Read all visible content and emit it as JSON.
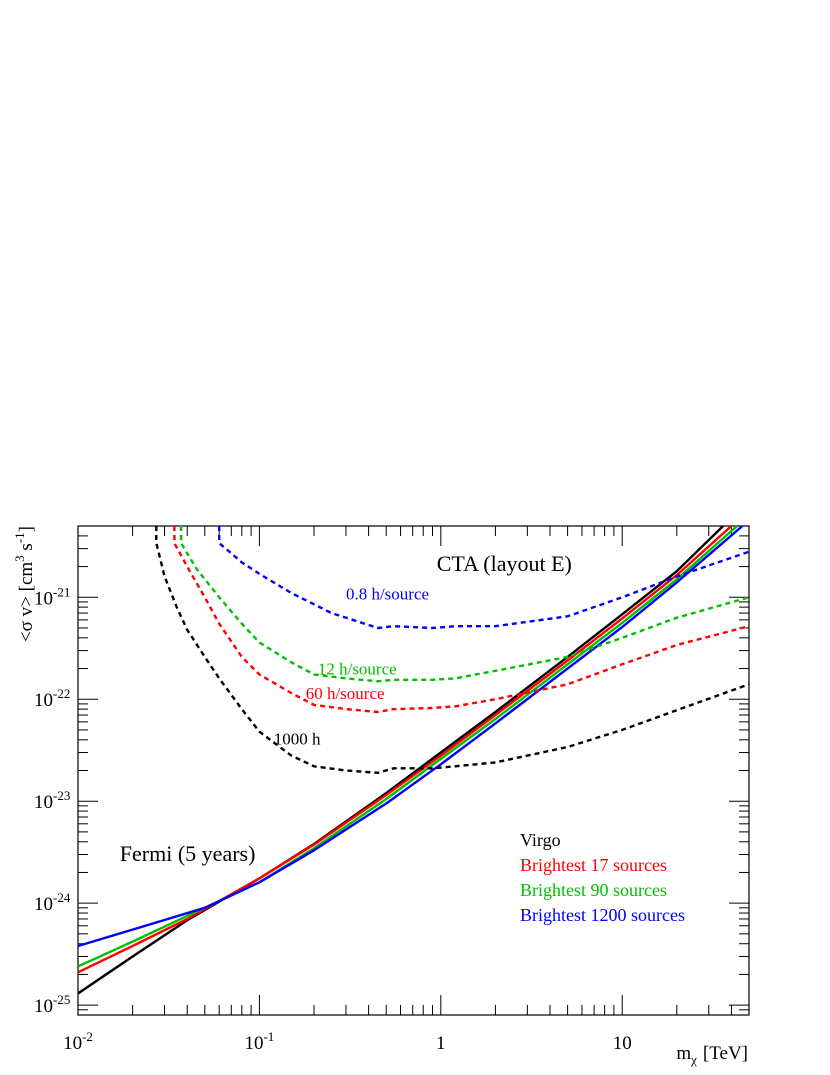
{
  "chart_data": {
    "type": "line",
    "xlabel": "m",
    "xlabel_sub": "χ",
    "xlabel_unit": "[TeV]",
    "ylabel": "<σ v> [cm",
    "ylabel_sup1": "3",
    "ylabel_mid": " s",
    "ylabel_sup2": "-1",
    "ylabel_end": "]",
    "x_scale": "log",
    "y_scale": "log",
    "xlim": [
      0.01,
      50
    ],
    "ylim": [
      8e-26,
      5e-21
    ],
    "x_ticks": [
      {
        "value": 0.01,
        "base": "10",
        "exp": "-2"
      },
      {
        "value": 0.1,
        "base": "10",
        "exp": "-1"
      },
      {
        "value": 1,
        "base": "1",
        "exp": ""
      },
      {
        "value": 10,
        "base": "10",
        "exp": ""
      }
    ],
    "y_ticks": [
      {
        "value": 1e-25,
        "base": "10",
        "exp": "-25"
      },
      {
        "value": 1e-24,
        "base": "10",
        "exp": "-24"
      },
      {
        "value": 1e-23,
        "base": "10",
        "exp": "-23"
      },
      {
        "value": 1e-22,
        "base": "10",
        "exp": "-22"
      },
      {
        "value": 1e-21,
        "base": "10",
        "exp": "-21"
      }
    ],
    "grid": false,
    "annotations": [
      {
        "id": "cta-title",
        "text": "CTA (layout E)",
        "color": "#000000",
        "x": 0.95,
        "y": 1.8e-21,
        "size": 22
      },
      {
        "id": "fermi-title",
        "text": "Fermi (5 years)",
        "color": "#000000",
        "x": 0.017,
        "y": 2.6e-24,
        "size": 22
      },
      {
        "id": "label-0p8h",
        "text": "0.8 h/source",
        "color": "#0000ff",
        "x": 0.3,
        "y": 9.5e-22,
        "size": 17
      },
      {
        "id": "label-12h",
        "text": "12 h/source",
        "color": "#00c000",
        "x": 0.21,
        "y": 1.75e-22,
        "size": 17
      },
      {
        "id": "label-60h",
        "text": "60 h/source",
        "color": "#ff0000",
        "x": 0.18,
        "y": 1e-22,
        "size": 17
      },
      {
        "id": "label-1000h",
        "text": "1000 h",
        "color": "#000000",
        "x": 0.12,
        "y": 3.6e-23,
        "size": 17
      }
    ],
    "legend": {
      "position": "bottom-right",
      "entries": [
        {
          "label": "Virgo",
          "color": "#000000"
        },
        {
          "label": "Brightest 17 sources",
          "color": "#ff0000"
        },
        {
          "label": "Brightest 90 sources",
          "color": "#00c000"
        },
        {
          "label": "Brightest 1200 sources",
          "color": "#0000ff"
        }
      ]
    },
    "series": [
      {
        "name": "Virgo",
        "color": "#000000",
        "style": "solid",
        "x": [
          0.01,
          0.02,
          0.04,
          0.1,
          0.2,
          0.5,
          1,
          2,
          5,
          10,
          20,
          36
        ],
        "y": [
          1.3e-25,
          3e-25,
          6.8e-25,
          1.75e-24,
          3.8e-24,
          1.2e-23,
          3e-23,
          7.5e-23,
          2.6e-22,
          6.8e-22,
          1.8e-21,
          5e-21
        ]
      },
      {
        "name": "Brightest 17 sources",
        "color": "#ff0000",
        "style": "solid",
        "x": [
          0.01,
          0.02,
          0.04,
          0.1,
          0.2,
          0.5,
          1,
          2,
          5,
          10,
          20,
          40
        ],
        "y": [
          2.1e-25,
          3.8e-25,
          7e-25,
          1.75e-24,
          3.75e-24,
          1.15e-23,
          2.8e-23,
          7e-23,
          2.4e-22,
          6.2e-22,
          1.65e-21,
          5e-21
        ]
      },
      {
        "name": "Brightest 90 sources",
        "color": "#00c000",
        "style": "solid",
        "x": [
          0.01,
          0.02,
          0.04,
          0.1,
          0.2,
          0.5,
          1,
          2,
          5,
          10,
          20,
          43
        ],
        "y": [
          2.4e-25,
          4.2e-25,
          7.5e-25,
          1.6e-24,
          3.45e-24,
          1.05e-23,
          2.6e-23,
          6.4e-23,
          2.2e-22,
          5.6e-22,
          1.5e-21,
          5e-21
        ]
      },
      {
        "name": "Brightest 1200 sources",
        "color": "#0000ff",
        "style": "solid",
        "x": [
          0.01,
          0.02,
          0.05,
          0.1,
          0.2,
          0.5,
          1,
          2,
          5,
          10,
          20,
          46
        ],
        "y": [
          3.8e-25,
          5.5e-25,
          9e-25,
          1.6e-24,
          3.3e-24,
          9.5e-24,
          2.3e-23,
          5.8e-23,
          2e-22,
          5.1e-22,
          1.4e-21,
          5e-21
        ]
      },
      {
        "name": "0.8 h/source",
        "color": "#0000ff",
        "style": "dashed",
        "x": [
          0.06,
          0.06,
          0.07,
          0.08,
          0.1,
          0.15,
          0.25,
          0.45,
          0.55,
          0.9,
          1.2,
          2,
          5,
          10,
          20,
          50
        ],
        "y": [
          5e-21,
          3.4e-21,
          2.7e-21,
          2.2e-21,
          1.7e-21,
          1.1e-21,
          7e-22,
          5e-22,
          5.2e-22,
          5e-22,
          5.2e-22,
          5.2e-22,
          6.5e-22,
          1e-21,
          1.6e-21,
          2.8e-21
        ]
      },
      {
        "name": "12 h/source",
        "color": "#00c000",
        "style": "dashed",
        "x": [
          0.037,
          0.037,
          0.045,
          0.06,
          0.08,
          0.1,
          0.15,
          0.2,
          0.3,
          0.45,
          0.55,
          0.9,
          1.2,
          2,
          5,
          10,
          20,
          50
        ],
        "y": [
          5e-21,
          3.4e-21,
          1.9e-21,
          1e-21,
          5.5e-22,
          3.6e-22,
          2.3e-22,
          1.75e-22,
          1.6e-22,
          1.5e-22,
          1.55e-22,
          1.55e-22,
          1.6e-22,
          1.9e-22,
          2.6e-22,
          4e-22,
          6.3e-22,
          1e-21
        ]
      },
      {
        "name": "60 h/source",
        "color": "#ff0000",
        "style": "dashed",
        "x": [
          0.034,
          0.034,
          0.04,
          0.05,
          0.06,
          0.08,
          0.1,
          0.15,
          0.2,
          0.3,
          0.45,
          0.55,
          0.9,
          1.2,
          2,
          5,
          10,
          20,
          50
        ],
        "y": [
          5e-21,
          3.4e-21,
          2e-21,
          1e-21,
          5.5e-22,
          2.6e-22,
          1.75e-22,
          1.15e-22,
          8.8e-23,
          8e-23,
          7.5e-23,
          8e-23,
          8.2e-23,
          8.5e-23,
          1e-22,
          1.4e-22,
          2.2e-22,
          3.4e-22,
          5.2e-22
        ]
      },
      {
        "name": "1000 h",
        "color": "#000000",
        "style": "dashed",
        "x": [
          0.027,
          0.027,
          0.03,
          0.035,
          0.04,
          0.05,
          0.06,
          0.08,
          0.1,
          0.15,
          0.2,
          0.3,
          0.45,
          0.55,
          0.9,
          1.2,
          2,
          5,
          10,
          20,
          50
        ],
        "y": [
          5e-21,
          3.4e-21,
          1.6e-21,
          8e-22,
          4.8e-22,
          2.6e-22,
          1.6e-22,
          8e-23,
          4.8e-23,
          2.8e-23,
          2.2e-23,
          2e-23,
          1.9e-23,
          2.1e-23,
          2.1e-23,
          2.2e-23,
          2.4e-23,
          3.4e-23,
          5e-23,
          7.8e-23,
          1.4e-22
        ]
      }
    ]
  }
}
